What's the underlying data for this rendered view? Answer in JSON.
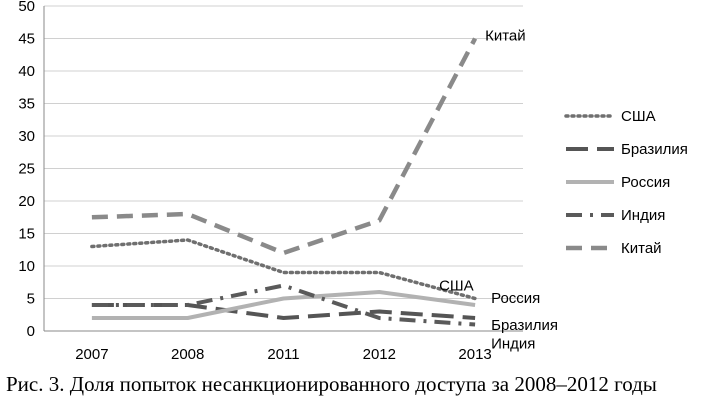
{
  "chart_data": {
    "type": "line",
    "categories": [
      "2007",
      "2008",
      "2011",
      "2012",
      "2013"
    ],
    "ylim": [
      0,
      50
    ],
    "yticks": [
      0,
      5,
      10,
      15,
      20,
      25,
      30,
      35,
      40,
      45,
      50
    ],
    "grid": true,
    "legend_placement": "right",
    "series": [
      {
        "name": "США",
        "values": [
          13,
          14,
          9,
          9,
          5
        ],
        "color": "#6f6f6f",
        "style": "dotted"
      },
      {
        "name": "Бразилия",
        "values": [
          4,
          4,
          2,
          3,
          2
        ],
        "color": "#555555",
        "style": "long-dash"
      },
      {
        "name": "Россия",
        "values": [
          2,
          2,
          5,
          6,
          4
        ],
        "color": "#b2b2b2",
        "style": "solid"
      },
      {
        "name": "Индия",
        "values": [
          4,
          4,
          7,
          2,
          1
        ],
        "color": "#5a5a5a",
        "style": "dash-dot"
      },
      {
        "name": "Китай",
        "values": [
          17.5,
          18,
          12,
          17,
          45
        ],
        "color": "#8a8a8a",
        "style": "dash"
      }
    ],
    "end_labels": [
      {
        "text": "Китай",
        "series": 4
      },
      {
        "text": "США",
        "series": 0
      },
      {
        "text": "Россия",
        "series": 2
      },
      {
        "text": "Бразилия",
        "series": 1
      },
      {
        "text": "Индия",
        "series": 3
      }
    ]
  },
  "caption": "Рис. 3. Доля попыток несанкционированного доступа за 2008–2012 годы"
}
